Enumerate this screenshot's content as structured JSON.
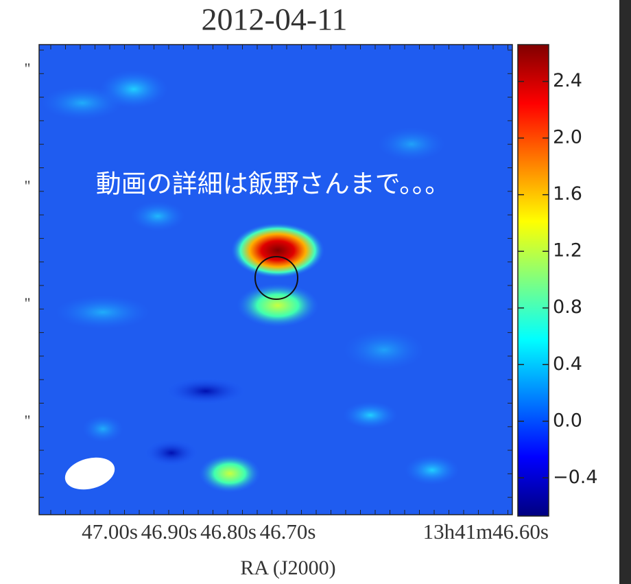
{
  "title": "2012-04-11",
  "xlabel": "RA (J2000)",
  "xticklabels": [
    "47.00s",
    "46.90s",
    "46.80s",
    "46.70s",
    "13h41m46.60s"
  ],
  "yticklabels": [
    "\"",
    "\"",
    "\"",
    "\""
  ],
  "annotation": "動画の詳細は飯野さんまで。。。",
  "colorbar": {
    "clim": [
      -0.67,
      2.66
    ],
    "ticks": [
      {
        "value": -0.4,
        "label": "−0.4"
      },
      {
        "value": 0,
        "label": "0.0"
      },
      0.4,
      0.8,
      1.2,
      1.6,
      {
        "value": 2,
        "label": "2.0"
      },
      2.4
    ]
  }
}
